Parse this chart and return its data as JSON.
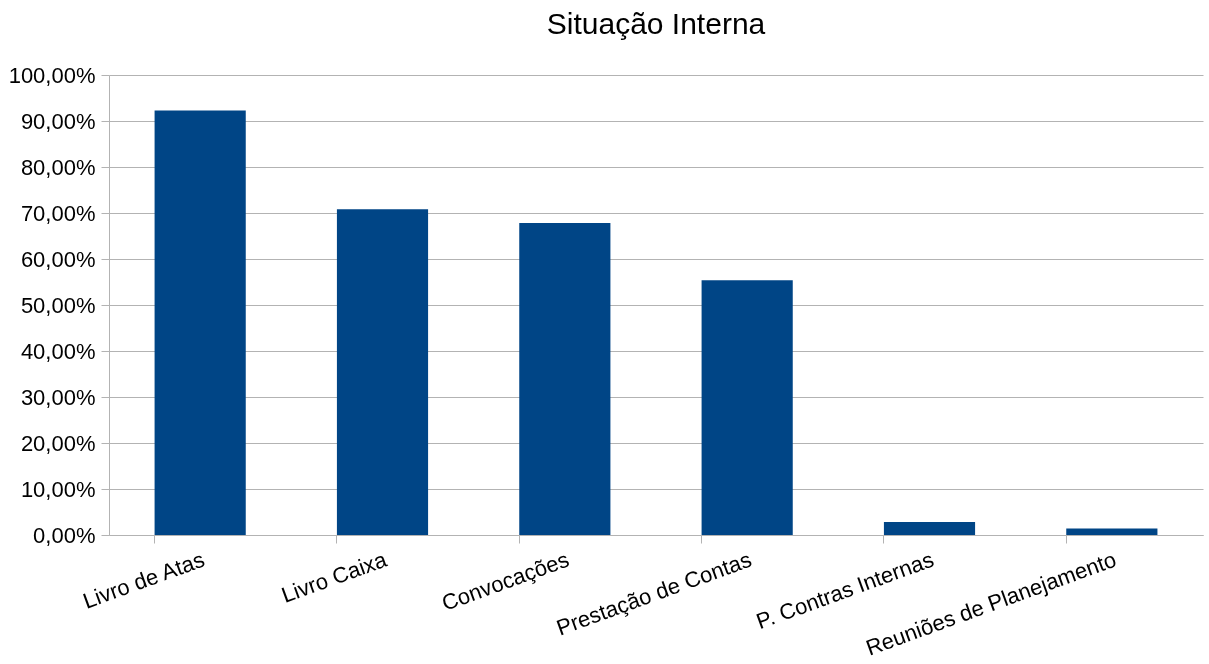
{
  "chart_data": {
    "type": "bar",
    "title": "Situação Interna",
    "categories": [
      "Livro de Atas",
      "Livro Caixa",
      "Convocações",
      "Prestação de Contas",
      "P. Contras Internas",
      "Reuniões de Planejamento"
    ],
    "values": [
      92.3,
      70.8,
      67.8,
      55.4,
      2.8,
      1.4
    ],
    "color": "#004586",
    "ylim": [
      0,
      100
    ],
    "yticks": [
      {
        "value": 0,
        "label": "0,00%"
      },
      {
        "value": 10,
        "label": "10,00%"
      },
      {
        "value": 20,
        "label": "20,00%"
      },
      {
        "value": 30,
        "label": "30,00%"
      },
      {
        "value": 40,
        "label": "40,00%"
      },
      {
        "value": 50,
        "label": "50,00%"
      },
      {
        "value": 60,
        "label": "60,00%"
      },
      {
        "value": 70,
        "label": "70,00%"
      },
      {
        "value": 80,
        "label": "80,00%"
      },
      {
        "value": 90,
        "label": "90,00%"
      },
      {
        "value": 100,
        "label": "100,00%"
      }
    ],
    "grid": "y"
  }
}
